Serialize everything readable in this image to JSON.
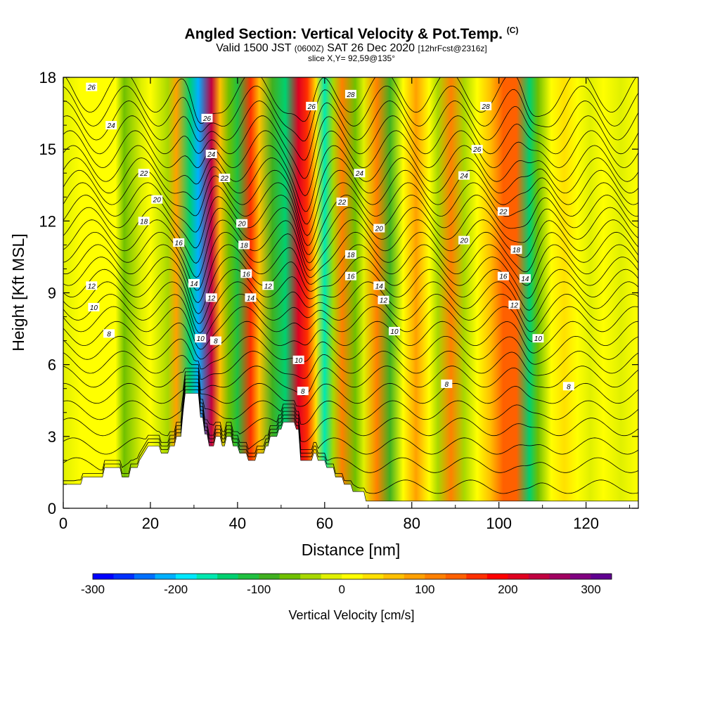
{
  "header": {
    "title": "Angled Section: Vertical Velocity & Pot.Temp.",
    "title_mark": "(C)",
    "valid_main": "Valid 1500 JST",
    "valid_z": "(0600Z)",
    "valid_date": "SAT 26 Dec 2020",
    "forecast": "[12hrFcst@2316z]",
    "slice": "slice X,Y= 92,59@135°"
  },
  "chart_data": {
    "type": "heatmap",
    "title": "Angled Section: Vertical Velocity & Pot.Temp.",
    "xlabel": "Distance [nm]",
    "ylabel": "Height [Kft MSL]",
    "xlim": [
      0,
      132
    ],
    "ylim": [
      0,
      18
    ],
    "xticks": [
      "0",
      "20",
      "40",
      "60",
      "80",
      "100",
      "120"
    ],
    "yticks": [
      "0",
      "3",
      "6",
      "9",
      "12",
      "15",
      "18"
    ],
    "colorbar": {
      "label": "Vertical Velocity [cm/s]",
      "range": [
        -300,
        325
      ],
      "ticks": [
        "-300",
        "-200",
        "-100",
        "0",
        "100",
        "200",
        "300"
      ],
      "colors": [
        "#0000ff",
        "#0030ff",
        "#0070ff",
        "#00b0ff",
        "#00e8ff",
        "#00e8b0",
        "#00d070",
        "#20c040",
        "#40b020",
        "#70c000",
        "#a8d800",
        "#e0f000",
        "#ffff00",
        "#ffe000",
        "#ffc000",
        "#ffa000",
        "#ff8000",
        "#ff6000",
        "#ff3000",
        "#ff0000",
        "#e00020",
        "#c00040",
        "#a00060",
        "#800080",
        "#600090"
      ]
    },
    "velocity_cells": [
      {
        "x": 0,
        "w": -5
      },
      {
        "x": 4,
        "w": 10
      },
      {
        "x": 8,
        "w": 20
      },
      {
        "x": 12,
        "w": 5
      },
      {
        "x": 14,
        "w": -70
      },
      {
        "x": 18,
        "w": -10
      },
      {
        "x": 20,
        "w": 20
      },
      {
        "x": 24,
        "w": -30
      },
      {
        "x": 26,
        "w": 80
      },
      {
        "x": 29,
        "w": -150
      },
      {
        "x": 31,
        "w": -220
      },
      {
        "x": 34,
        "w": 230
      },
      {
        "x": 36,
        "w": 60
      },
      {
        "x": 38,
        "w": -60
      },
      {
        "x": 40,
        "w": -110
      },
      {
        "x": 43,
        "w": 170
      },
      {
        "x": 45,
        "w": 60
      },
      {
        "x": 48,
        "w": -90
      },
      {
        "x": 51,
        "w": -140
      },
      {
        "x": 54,
        "w": 200
      },
      {
        "x": 56,
        "w": 160
      },
      {
        "x": 58,
        "w": 30
      },
      {
        "x": 60,
        "w": -160
      },
      {
        "x": 62,
        "w": -30
      },
      {
        "x": 64,
        "w": 100
      },
      {
        "x": 67,
        "w": -60
      },
      {
        "x": 69,
        "w": -10
      },
      {
        "x": 72,
        "w": 110
      },
      {
        "x": 75,
        "w": -80
      },
      {
        "x": 78,
        "w": 20
      },
      {
        "x": 81,
        "w": 90
      },
      {
        "x": 84,
        "w": 20
      },
      {
        "x": 86,
        "w": -30
      },
      {
        "x": 89,
        "w": 100
      },
      {
        "x": 92,
        "w": -40
      },
      {
        "x": 95,
        "w": 20
      },
      {
        "x": 98,
        "w": 60
      },
      {
        "x": 101,
        "w": 130
      },
      {
        "x": 104,
        "w": 140
      },
      {
        "x": 107,
        "w": -140
      },
      {
        "x": 109,
        "w": -60
      },
      {
        "x": 112,
        "w": 10
      },
      {
        "x": 115,
        "w": 40
      },
      {
        "x": 118,
        "w": 10
      },
      {
        "x": 121,
        "w": -10
      },
      {
        "x": 124,
        "w": 10
      },
      {
        "x": 128,
        "w": -20
      },
      {
        "x": 132,
        "w": 0
      }
    ],
    "terrain": [
      {
        "x": 0,
        "h": 1.0
      },
      {
        "x": 4,
        "h": 1.0
      },
      {
        "x": 4.5,
        "h": 1.3
      },
      {
        "x": 9,
        "h": 1.3
      },
      {
        "x": 9.5,
        "h": 1.7
      },
      {
        "x": 13,
        "h": 1.7
      },
      {
        "x": 13.5,
        "h": 1.3
      },
      {
        "x": 15,
        "h": 1.3
      },
      {
        "x": 15.5,
        "h": 1.7
      },
      {
        "x": 17,
        "h": 1.7
      },
      {
        "x": 17.5,
        "h": 2.0
      },
      {
        "x": 18.5,
        "h": 2.3
      },
      {
        "x": 19.5,
        "h": 2.6
      },
      {
        "x": 22,
        "h": 2.6
      },
      {
        "x": 22.5,
        "h": 2.3
      },
      {
        "x": 24,
        "h": 2.3
      },
      {
        "x": 24.5,
        "h": 2.6
      },
      {
        "x": 25.5,
        "h": 2.6
      },
      {
        "x": 26,
        "h": 3.0
      },
      {
        "x": 27,
        "h": 3.0
      },
      {
        "x": 27.5,
        "h": 4.0
      },
      {
        "x": 28,
        "h": 4.8
      },
      {
        "x": 31,
        "h": 4.8
      },
      {
        "x": 31.5,
        "h": 3.8
      },
      {
        "x": 32,
        "h": 3.8
      },
      {
        "x": 32.5,
        "h": 3.1
      },
      {
        "x": 33,
        "h": 3.1
      },
      {
        "x": 33.5,
        "h": 2.6
      },
      {
        "x": 34.5,
        "h": 2.6
      },
      {
        "x": 35,
        "h": 3.0
      },
      {
        "x": 36,
        "h": 3.0
      },
      {
        "x": 36.5,
        "h": 2.6
      },
      {
        "x": 37,
        "h": 2.6
      },
      {
        "x": 37.5,
        "h": 3.0
      },
      {
        "x": 38.5,
        "h": 3.0
      },
      {
        "x": 39,
        "h": 2.6
      },
      {
        "x": 40,
        "h": 2.6
      },
      {
        "x": 40.5,
        "h": 2.3
      },
      {
        "x": 42,
        "h": 2.3
      },
      {
        "x": 42.5,
        "h": 2.0
      },
      {
        "x": 44,
        "h": 2.0
      },
      {
        "x": 44.5,
        "h": 2.3
      },
      {
        "x": 46,
        "h": 2.3
      },
      {
        "x": 46.5,
        "h": 2.6
      },
      {
        "x": 47,
        "h": 2.6
      },
      {
        "x": 47.5,
        "h": 3.0
      },
      {
        "x": 49,
        "h": 3.0
      },
      {
        "x": 49.5,
        "h": 3.3
      },
      {
        "x": 50,
        "h": 3.3
      },
      {
        "x": 50.5,
        "h": 3.6
      },
      {
        "x": 53,
        "h": 3.6
      },
      {
        "x": 53.5,
        "h": 3.3
      },
      {
        "x": 54,
        "h": 3.3
      },
      {
        "x": 54.5,
        "h": 2.0
      },
      {
        "x": 57,
        "h": 2.0
      },
      {
        "x": 57.5,
        "h": 2.3
      },
      {
        "x": 58,
        "h": 2.3
      },
      {
        "x": 58.5,
        "h": 2.0
      },
      {
        "x": 60,
        "h": 2.0
      },
      {
        "x": 60.5,
        "h": 1.7
      },
      {
        "x": 62,
        "h": 1.7
      },
      {
        "x": 62.5,
        "h": 1.3
      },
      {
        "x": 64,
        "h": 1.3
      },
      {
        "x": 64.5,
        "h": 1.0
      },
      {
        "x": 66,
        "h": 1.0
      },
      {
        "x": 66.5,
        "h": 0.7
      },
      {
        "x": 69,
        "h": 0.7
      },
      {
        "x": 69.5,
        "h": 0.3
      },
      {
        "x": 132,
        "h": 0.3
      }
    ],
    "theta_contours": [
      {
        "label": "8",
        "base": 0.9
      },
      {
        "label": "",
        "base": 1.8
      },
      {
        "label": "",
        "base": 2.6
      },
      {
        "label": "",
        "base": 3.4
      },
      {
        "label": "",
        "base": 4.1
      },
      {
        "label": "8",
        "base": 4.8
      },
      {
        "label": "",
        "base": 5.5
      },
      {
        "label": "",
        "base": 6.1
      },
      {
        "label": "",
        "base": 6.7
      },
      {
        "label": "",
        "base": 7.3
      },
      {
        "label": "10",
        "base": 7.9
      },
      {
        "label": "",
        "base": 8.4
      },
      {
        "label": "12",
        "base": 8.9
      },
      {
        "label": "",
        "base": 9.4
      },
      {
        "label": "14",
        "base": 9.9
      },
      {
        "label": "",
        "base": 10.4
      },
      {
        "label": "16",
        "base": 10.9
      },
      {
        "label": "",
        "base": 11.4
      },
      {
        "label": "18",
        "base": 11.9
      },
      {
        "label": "",
        "base": 12.4
      },
      {
        "label": "20",
        "base": 12.9
      },
      {
        "label": "",
        "base": 13.4
      },
      {
        "label": "22",
        "base": 13.9
      },
      {
        "label": "",
        "base": 14.4
      },
      {
        "label": "24",
        "base": 15.0
      },
      {
        "label": "",
        "base": 15.6
      },
      {
        "label": "26",
        "base": 16.2
      },
      {
        "label": "",
        "base": 16.8
      },
      {
        "label": "28",
        "base": 17.4
      }
    ],
    "contour_labels": [
      {
        "text": "26",
        "x": 6.5,
        "y": 17.6
      },
      {
        "text": "24",
        "x": 11,
        "y": 16.0
      },
      {
        "text": "22",
        "x": 18.5,
        "y": 14.0
      },
      {
        "text": "20",
        "x": 21.5,
        "y": 12.9
      },
      {
        "text": "18",
        "x": 18.5,
        "y": 12.0
      },
      {
        "text": "16",
        "x": 26.5,
        "y": 11.1
      },
      {
        "text": "12",
        "x": 6.5,
        "y": 9.3
      },
      {
        "text": "10",
        "x": 7,
        "y": 8.4
      },
      {
        "text": "8",
        "x": 10.5,
        "y": 7.3
      },
      {
        "text": "26",
        "x": 33,
        "y": 16.3
      },
      {
        "text": "24",
        "x": 34,
        "y": 14.8
      },
      {
        "text": "22",
        "x": 37,
        "y": 13.8
      },
      {
        "text": "20",
        "x": 41,
        "y": 11.9
      },
      {
        "text": "18",
        "x": 41.5,
        "y": 11.0
      },
      {
        "text": "16",
        "x": 42,
        "y": 9.8
      },
      {
        "text": "14",
        "x": 30,
        "y": 9.4
      },
      {
        "text": "12",
        "x": 34,
        "y": 8.8
      },
      {
        "text": "14",
        "x": 43,
        "y": 8.8
      },
      {
        "text": "12",
        "x": 47,
        "y": 9.3
      },
      {
        "text": "10",
        "x": 31.5,
        "y": 7.1
      },
      {
        "text": "8",
        "x": 35,
        "y": 7.0
      },
      {
        "text": "26",
        "x": 57,
        "y": 16.8
      },
      {
        "text": "28",
        "x": 66,
        "y": 17.3
      },
      {
        "text": "24",
        "x": 68,
        "y": 14.0
      },
      {
        "text": "22",
        "x": 64,
        "y": 12.8
      },
      {
        "text": "20",
        "x": 72.5,
        "y": 11.7
      },
      {
        "text": "18",
        "x": 66,
        "y": 10.6
      },
      {
        "text": "16",
        "x": 66,
        "y": 9.7
      },
      {
        "text": "14",
        "x": 72.5,
        "y": 9.3
      },
      {
        "text": "12",
        "x": 73.5,
        "y": 8.7
      },
      {
        "text": "10",
        "x": 76,
        "y": 7.4
      },
      {
        "text": "10",
        "x": 54,
        "y": 6.2
      },
      {
        "text": "8",
        "x": 55,
        "y": 4.9
      },
      {
        "text": "28",
        "x": 97,
        "y": 16.8
      },
      {
        "text": "26",
        "x": 95,
        "y": 15.0
      },
      {
        "text": "24",
        "x": 92,
        "y": 13.9
      },
      {
        "text": "22",
        "x": 101,
        "y": 12.4
      },
      {
        "text": "20",
        "x": 92,
        "y": 11.2
      },
      {
        "text": "18",
        "x": 104,
        "y": 10.8
      },
      {
        "text": "16",
        "x": 101,
        "y": 9.7
      },
      {
        "text": "14",
        "x": 106,
        "y": 9.6
      },
      {
        "text": "12",
        "x": 103.5,
        "y": 8.5
      },
      {
        "text": "10",
        "x": 109,
        "y": 7.1
      },
      {
        "text": "8",
        "x": 88,
        "y": 5.2
      },
      {
        "text": "8",
        "x": 116,
        "y": 5.1
      }
    ]
  }
}
